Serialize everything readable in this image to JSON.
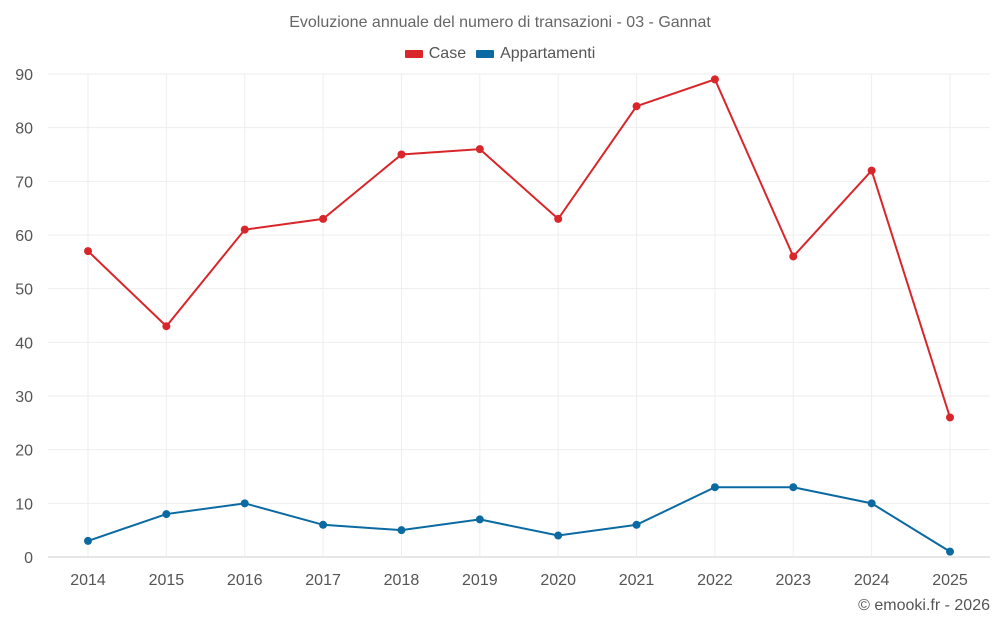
{
  "chart_data": {
    "type": "line",
    "title": "Evoluzione annuale del numero di transazioni - 03 - Gannat",
    "categories": [
      "2014",
      "2015",
      "2016",
      "2017",
      "2018",
      "2019",
      "2020",
      "2021",
      "2022",
      "2023",
      "2024",
      "2025"
    ],
    "series": [
      {
        "name": "Case",
        "color": "#d9262b",
        "values": [
          57,
          43,
          61,
          63,
          75,
          76,
          63,
          84,
          89,
          56,
          72,
          26
        ]
      },
      {
        "name": "Appartamenti",
        "color": "#0a6aa1",
        "values": [
          3,
          8,
          10,
          6,
          5,
          7,
          4,
          6,
          13,
          13,
          10,
          1
        ]
      }
    ],
    "xlabel": "",
    "ylabel": "",
    "ylim": [
      0,
      90
    ],
    "yticks": [
      0,
      10,
      20,
      30,
      40,
      50,
      60,
      70,
      80,
      90
    ],
    "grid": true,
    "legend": "top-center"
  },
  "credit": "© emooki.fr - 2026"
}
